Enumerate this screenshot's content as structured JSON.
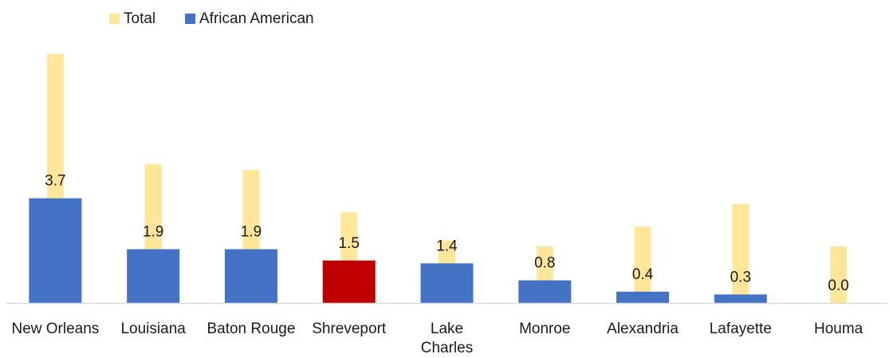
{
  "chart_data": {
    "type": "bar",
    "categories": [
      "New Orleans",
      "Louisiana",
      "Baton Rouge",
      "Shreveport",
      "Lake Charles",
      "Monroe",
      "Alexandria",
      "Lafayette",
      "Houma"
    ],
    "series": [
      {
        "name": "Total",
        "values": [
          8.8,
          4.9,
          4.7,
          3.2,
          2.2,
          2.0,
          2.7,
          3.5,
          2.0
        ],
        "color": "#ffe699"
      },
      {
        "name": "African American",
        "values": [
          3.7,
          1.9,
          1.9,
          1.5,
          1.4,
          0.8,
          0.4,
          0.3,
          0.0
        ],
        "color": "#4472c4",
        "highlight_color": "#c00000",
        "highlight_category": "Shreveport",
        "data_labels": [
          "3.7",
          "1.9",
          "1.9",
          "1.5",
          "1.4",
          "0.8",
          "0.4",
          "0.3",
          "0.0"
        ]
      }
    ],
    "title": "",
    "xlabel": "",
    "ylabel": "",
    "ylim": [
      0,
      10
    ],
    "grid": false,
    "legend": "top-left"
  }
}
